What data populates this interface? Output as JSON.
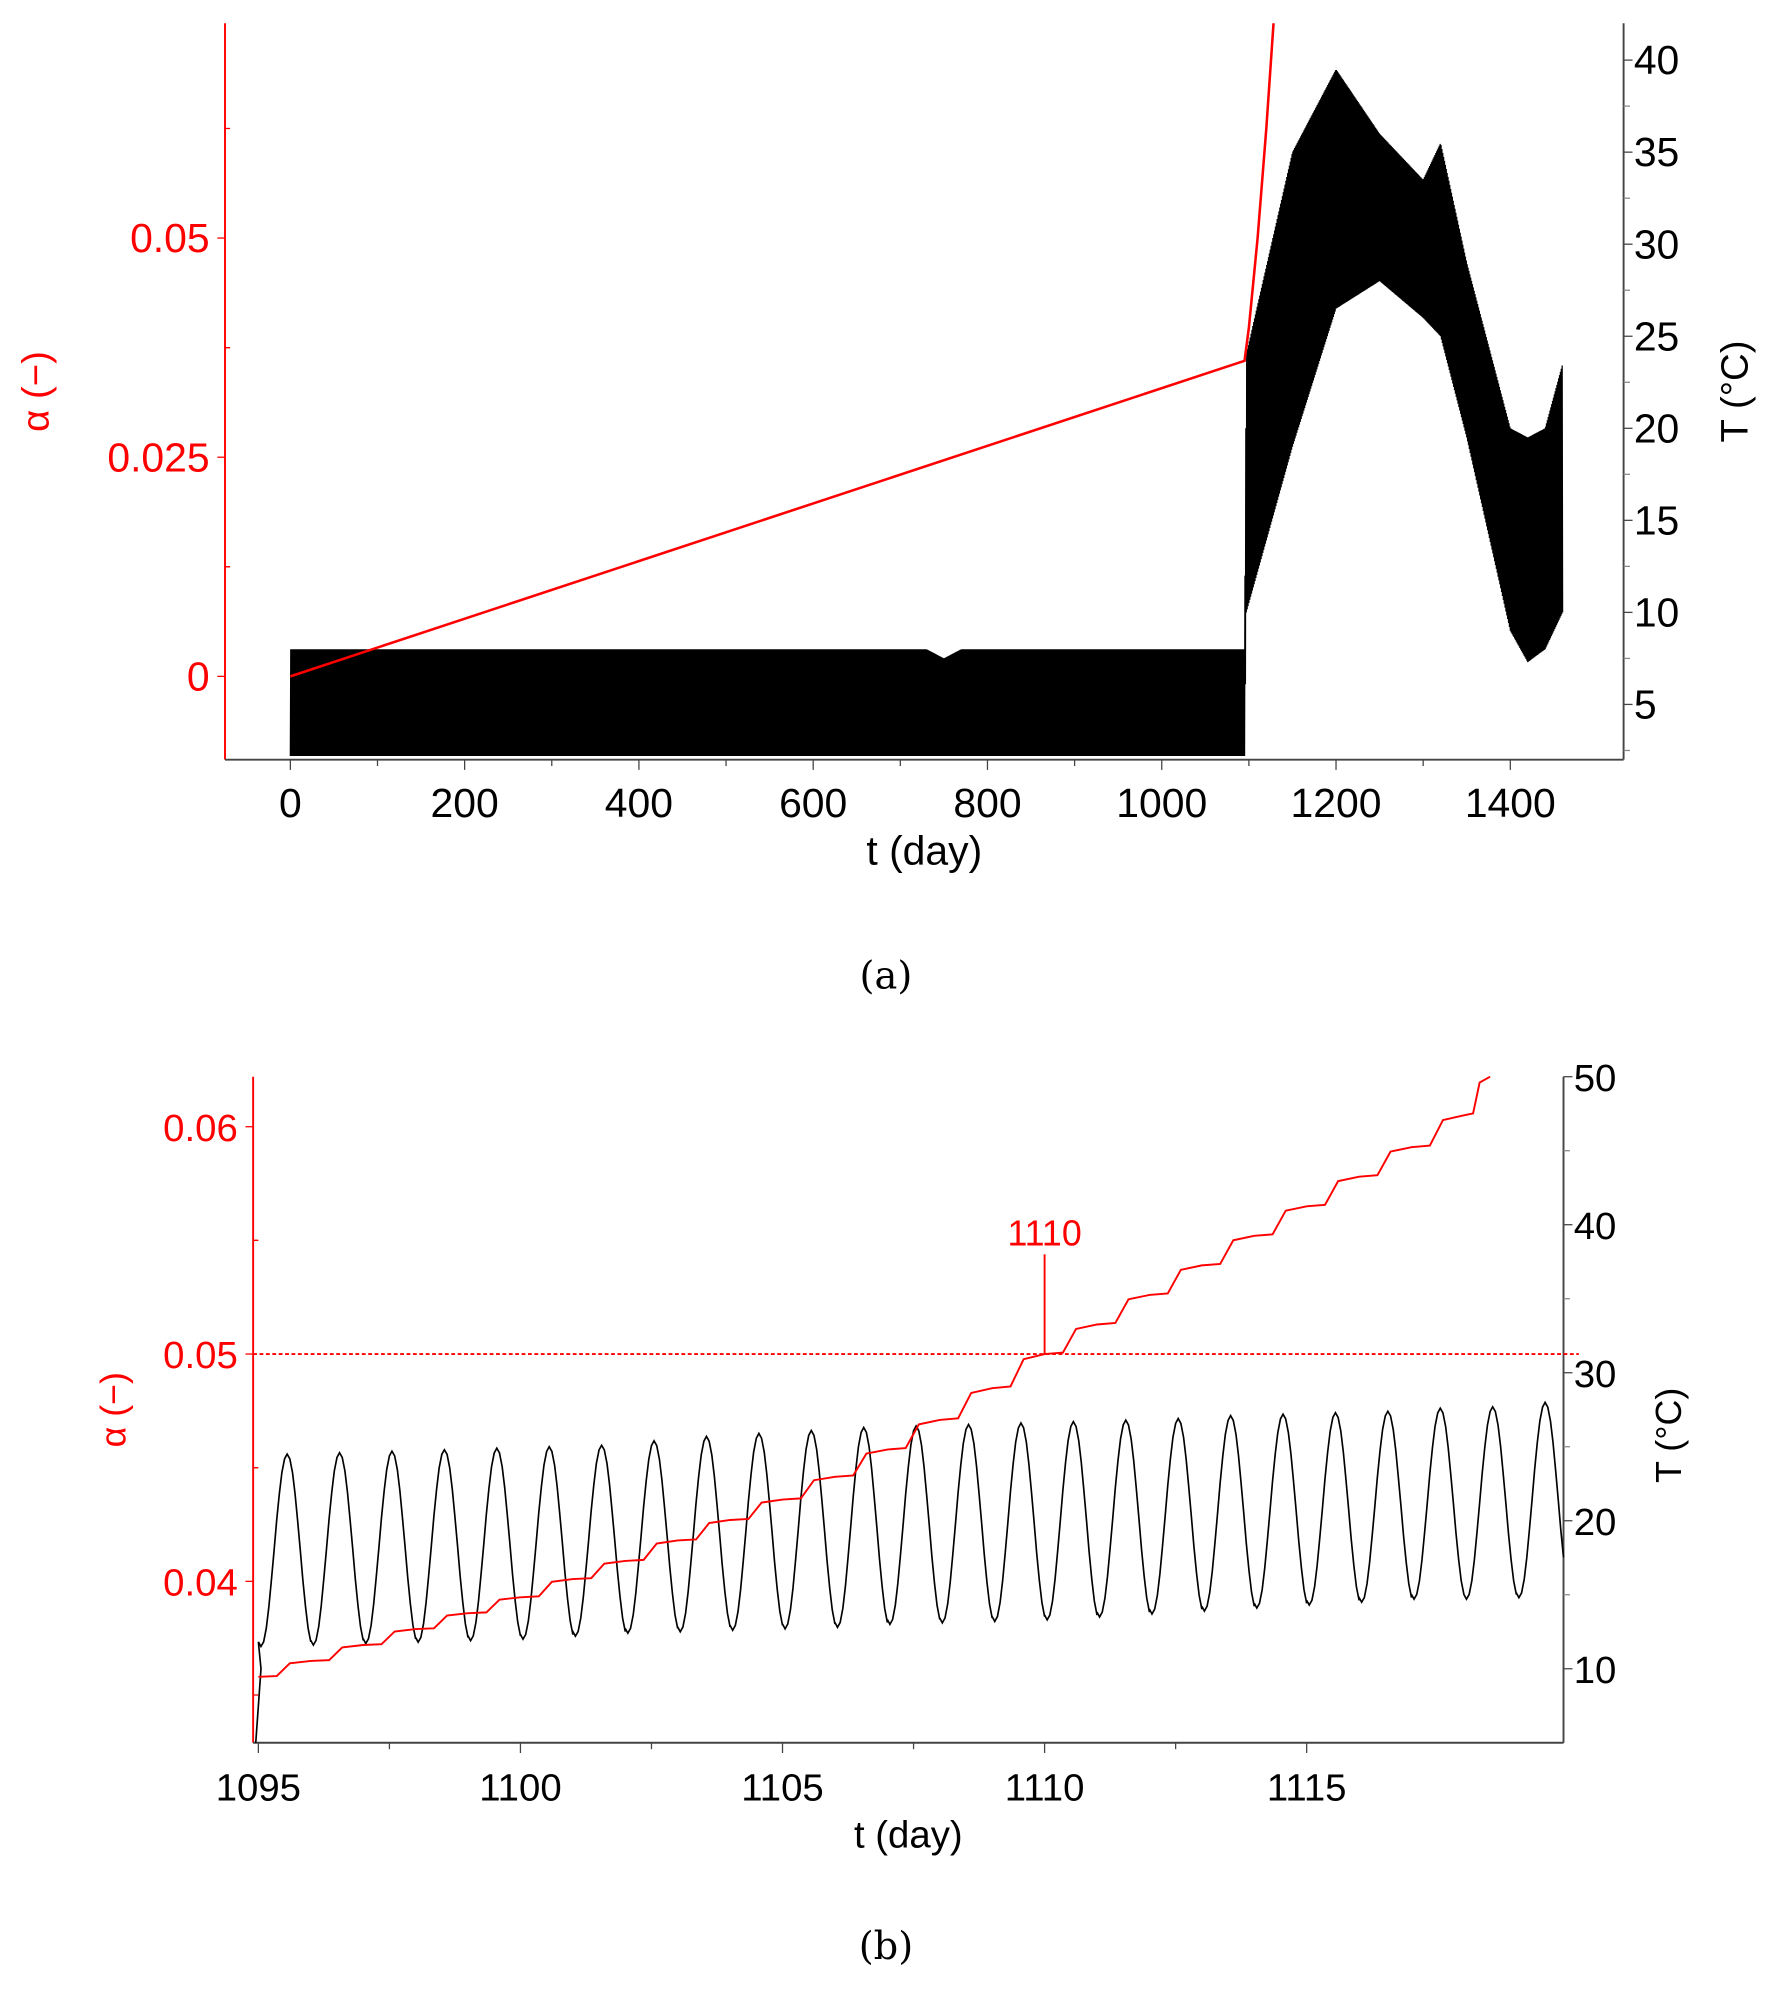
{
  "chart_data": [
    {
      "type": "line",
      "panel_label": "(a)",
      "xlabel": "t (day)",
      "ylabel_left": "α (−)",
      "ylabel_right": "T (°C)",
      "xlim": [
        -75,
        1530
      ],
      "ylim_left": [
        -0.0095,
        0.0745
      ],
      "ylim_right": [
        2,
        42
      ],
      "x_ticks": [
        0,
        200,
        400,
        600,
        800,
        1000,
        1200,
        1400
      ],
      "y_left_ticks": [
        "0",
        "0.025",
        "0.05"
      ],
      "y_left_tick_values": [
        0,
        0.025,
        0.05
      ],
      "y_right_ticks": [
        5,
        10,
        15,
        20,
        25,
        30,
        35,
        40
      ],
      "colors": {
        "alpha": "#ff0000",
        "temperature": "#000000"
      },
      "series": [
        {
          "key": "alpha",
          "axis": "left",
          "x": [
            0,
            1095,
            1100,
            1110,
            1120,
            1130
          ],
          "y": [
            0,
            0.036,
            0.0398,
            0.05,
            0.0625,
            0.077
          ]
        },
        {
          "key": "temperature_daily_envelope",
          "axis": "right",
          "x": [
            0,
            700,
            730,
            750,
            770,
            800,
            1095,
            1097,
            1150,
            1200,
            1250,
            1300,
            1320,
            1350,
            1400,
            1420,
            1440,
            1460
          ],
          "upper": [
            8,
            8,
            8,
            7.5,
            8,
            8,
            8,
            24,
            35,
            39.5,
            36,
            33.5,
            35.5,
            29,
            20,
            19.5,
            20,
            23.5
          ],
          "lower": [
            2.2,
            2.2,
            2.2,
            2.2,
            2.2,
            2.2,
            2.2,
            10,
            19,
            26.5,
            28,
            26,
            25,
            19.5,
            9,
            7.3,
            8,
            10
          ]
        }
      ]
    },
    {
      "type": "line",
      "panel_label": "(b)",
      "xlabel": "t (day)",
      "ylabel_left": "α (−)",
      "ylabel_right": "T (°C)",
      "xlim": [
        1094.9,
        1119.9
      ],
      "ylim_left": [
        0.0329,
        0.0622
      ],
      "ylim_right": [
        5,
        50
      ],
      "x_ticks": [
        1095,
        1100,
        1105,
        1110,
        1115
      ],
      "y_left_ticks": [
        "0.04",
        "0.05",
        "0.06"
      ],
      "y_left_tick_values": [
        0.04,
        0.05,
        0.06
      ],
      "y_right_ticks": [
        10,
        20,
        30,
        40,
        50
      ],
      "threshold": {
        "alpha": 0.05,
        "t": 1110,
        "label": "1110"
      },
      "colors": {
        "alpha": "#ff0000",
        "temperature": "#000000"
      },
      "series": [
        {
          "key": "alpha",
          "axis": "left",
          "x": [
            1095,
            1096,
            1097,
            1098,
            1099,
            1100,
            1101,
            1102,
            1103,
            1104,
            1105,
            1106,
            1107,
            1108,
            1109,
            1110,
            1111,
            1112,
            1113,
            1114,
            1115,
            1116,
            1117,
            1118,
            1118.5
          ],
          "y": [
            0.0358,
            0.0365,
            0.0372,
            0.0379,
            0.0386,
            0.0393,
            0.0401,
            0.0409,
            0.0418,
            0.0427,
            0.0436,
            0.0446,
            0.0458,
            0.0471,
            0.0485,
            0.05,
            0.0513,
            0.0526,
            0.0539,
            0.0552,
            0.0565,
            0.0578,
            0.0591,
            0.0605,
            0.0622
          ]
        },
        {
          "key": "temperature",
          "axis": "right",
          "day_start": [
            1095,
            1096,
            1097,
            1098,
            1099,
            1100,
            1101,
            1102,
            1103,
            1104,
            1105,
            1106,
            1107,
            1108,
            1109,
            1110,
            1111,
            1112,
            1113,
            1114,
            1115,
            1116,
            1117,
            1118,
            1119
          ],
          "daily_max": [
            24.5,
            24.6,
            24.7,
            24.8,
            24.9,
            25.0,
            25.1,
            25.4,
            25.7,
            25.9,
            26.1,
            26.3,
            26.4,
            26.5,
            26.6,
            26.7,
            26.8,
            26.9,
            27.1,
            27.2,
            27.3,
            27.4,
            27.6,
            27.7,
            28.0
          ],
          "daily_min": [
            11.5,
            11.6,
            11.7,
            11.8,
            11.9,
            12.0,
            12.2,
            12.4,
            12.5,
            12.6,
            12.7,
            12.8,
            13.0,
            13.1,
            13.2,
            13.3,
            13.5,
            13.7,
            13.9,
            14.1,
            14.3,
            14.5,
            14.7,
            14.7,
            14.8
          ]
        }
      ]
    }
  ]
}
